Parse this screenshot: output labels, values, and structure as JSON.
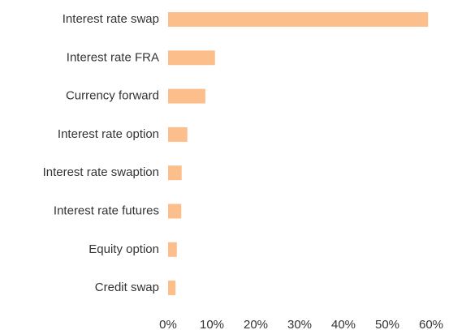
{
  "chart_data": {
    "type": "bar",
    "orientation": "horizontal",
    "categories": [
      "Interest rate swap",
      "Interest rate FRA",
      "Currency forward",
      "Interest rate option",
      "Interest rate swaption",
      "Interest rate futures",
      "Equity option",
      "Credit swap"
    ],
    "values": [
      59.3,
      10.7,
      8.5,
      4.4,
      3.1,
      3.0,
      2.0,
      1.7
    ],
    "color": "#fcbf8c",
    "xlim": [
      0,
      60
    ],
    "xticks": [
      {
        "value": 0,
        "label": "0%"
      },
      {
        "value": 10,
        "label": "10%"
      },
      {
        "value": 20,
        "label": "20%"
      },
      {
        "value": 30,
        "label": "30%"
      },
      {
        "value": 40,
        "label": "40%"
      },
      {
        "value": 50,
        "label": "50%"
      },
      {
        "value": 60,
        "label": "60%"
      }
    ],
    "grid": false
  }
}
